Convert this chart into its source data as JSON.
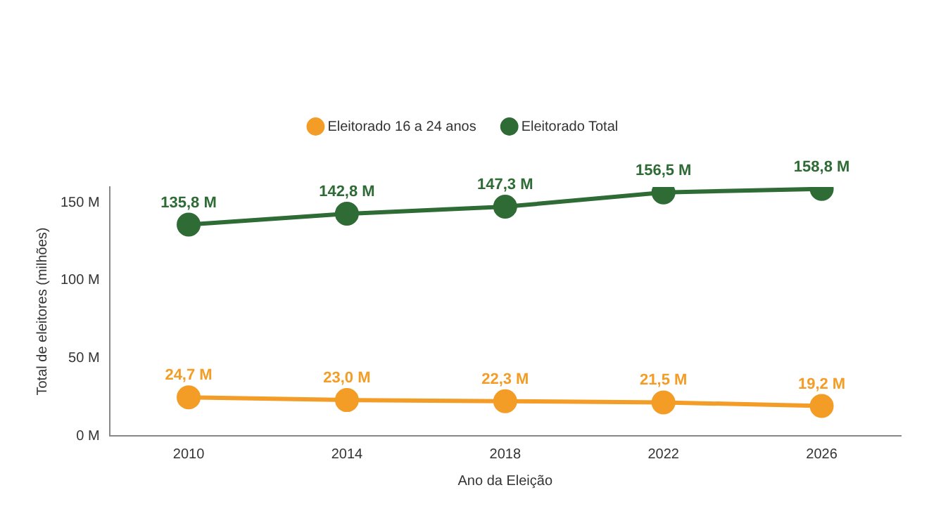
{
  "chart_data": {
    "type": "line",
    "xlabel": "Ano da Eleição",
    "ylabel": "Total de eleitores (milhões)",
    "categories": [
      "2010",
      "2014",
      "2018",
      "2022",
      "2026"
    ],
    "series": [
      {
        "name": "Eleitorado 16 a 24 anos",
        "color": "#f39c26",
        "values": [
          24.7,
          23.0,
          22.3,
          21.5,
          19.2
        ],
        "value_labels": [
          "24,7 M",
          "23,0 M",
          "22,3 M",
          "21,5 M",
          "19,2 M"
        ]
      },
      {
        "name": "Eleitorado Total",
        "color": "#2e6b35",
        "values": [
          135.8,
          142.8,
          147.3,
          156.5,
          158.8
        ],
        "value_labels": [
          "135,8 M",
          "142,8 M",
          "147,3 M",
          "156,5 M",
          "158,8 M"
        ]
      }
    ],
    "ylim": [
      0,
      160
    ],
    "yticks": [
      {
        "value": 0,
        "label": "0 M"
      },
      {
        "value": 50,
        "label": "50 M"
      },
      {
        "value": 100,
        "label": "100 M"
      },
      {
        "value": 150,
        "label": "150 M"
      }
    ],
    "grid": false,
    "legend": "top",
    "marker": "circle",
    "line_style": "solid"
  }
}
